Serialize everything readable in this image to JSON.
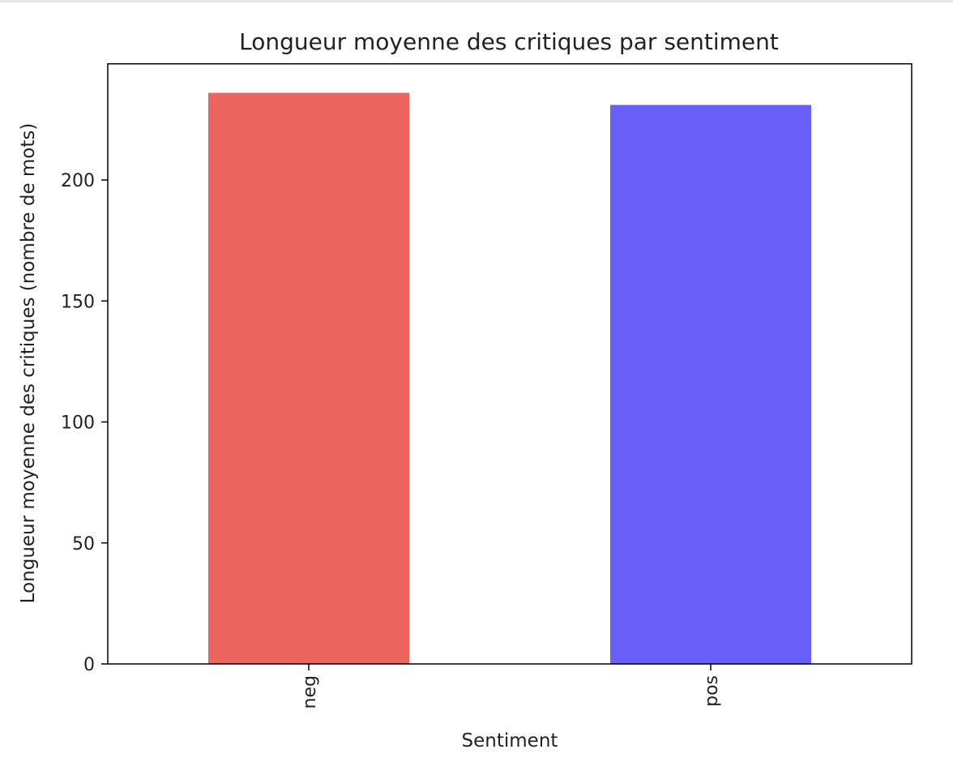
{
  "chart_data": {
    "type": "bar",
    "title": "Longueur moyenne des critiques par sentiment",
    "xlabel": "Sentiment",
    "ylabel": "Longueur moyenne des critiques (nombre de mots)",
    "categories": [
      "neg",
      "pos"
    ],
    "values": [
      236,
      231
    ],
    "colors": [
      "#ec645e",
      "#685ef8"
    ],
    "ylim": [
      0,
      248
    ],
    "yticks": [
      0,
      50,
      100,
      150,
      200
    ],
    "grid": false,
    "legend": "none"
  }
}
